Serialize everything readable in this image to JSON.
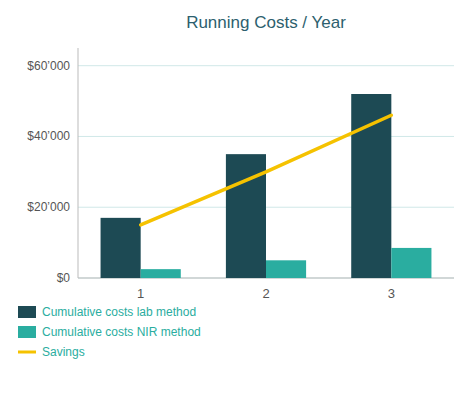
{
  "chart_data": {
    "type": "bar",
    "title": "Running Costs / Year",
    "categories": [
      "1",
      "2",
      "3"
    ],
    "series": [
      {
        "name": "Cumulative costs lab method",
        "type": "bar",
        "color": "#1d4a54",
        "values": [
          17000,
          35000,
          52000
        ]
      },
      {
        "name": "Cumulative costs NIR method",
        "type": "bar",
        "color": "#2aada0",
        "values": [
          2500,
          5000,
          8500
        ]
      },
      {
        "name": "Savings",
        "type": "line",
        "color": "#f5c200",
        "values": [
          15000,
          30000,
          46000
        ]
      }
    ],
    "ylim": [
      0,
      65000
    ],
    "yticks": [
      {
        "value": 0,
        "label": "$0"
      },
      {
        "value": 20000,
        "label": "$20’000"
      },
      {
        "value": 40000,
        "label": "$40’000"
      },
      {
        "value": 60000,
        "label": "$60’000"
      }
    ],
    "grid": true,
    "legend": "bottom"
  }
}
